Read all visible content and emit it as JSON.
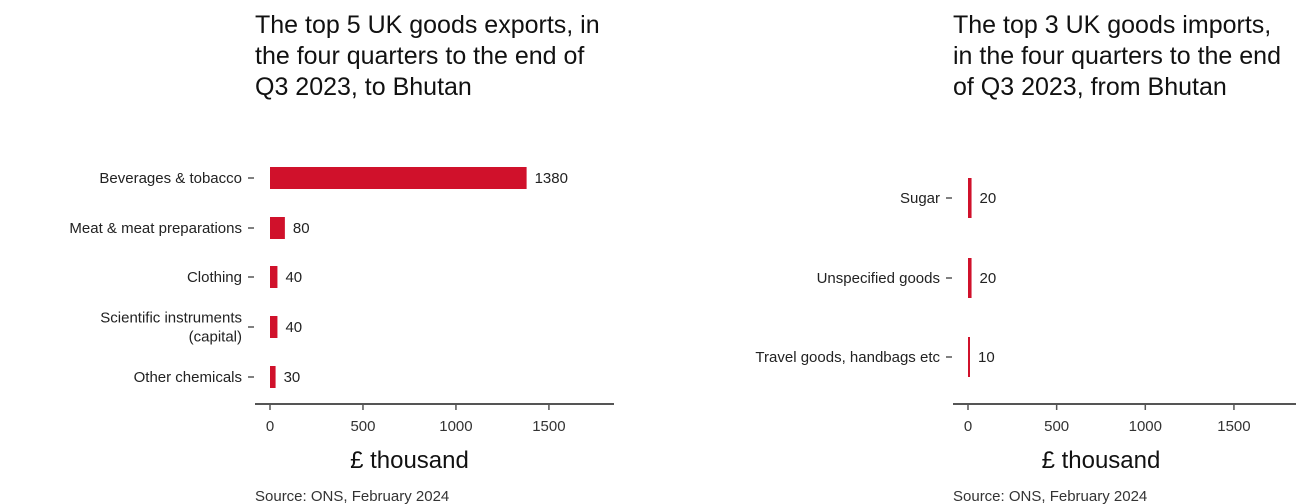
{
  "chart_data": [
    {
      "type": "bar",
      "orientation": "horizontal",
      "title": "The top 5 UK goods exports, in the four quarters to the end of Q3 2023, to Bhutan",
      "categories": [
        "Beverages & tobacco",
        "Meat & meat preparations",
        "Clothing",
        "Scientific instruments (capital)",
        "Other chemicals"
      ],
      "category_lines": [
        [
          "Beverages & tobacco"
        ],
        [
          "Meat & meat preparations"
        ],
        [
          "Clothing"
        ],
        [
          "Scientific instruments",
          "(capital)"
        ],
        [
          "Other chemicals"
        ]
      ],
      "values": [
        1380,
        80,
        40,
        40,
        30
      ],
      "xlabel": "£ thousand",
      "xlim": [
        0,
        1850
      ],
      "xticks": [
        0,
        500,
        1000,
        1500
      ],
      "grid": false,
      "bar_color": "#d0112b",
      "source": "Source: ONS, February 2024"
    },
    {
      "type": "bar",
      "orientation": "horizontal",
      "title": "The top 3 UK goods imports, in the four quarters to the end of Q3 2023, from Bhutan",
      "categories": [
        "Sugar",
        "Unspecified goods",
        "Travel goods, handbags etc"
      ],
      "category_lines": [
        [
          "Sugar"
        ],
        [
          "Unspecified goods"
        ],
        [
          "Travel goods, handbags etc"
        ]
      ],
      "values": [
        20,
        20,
        10
      ],
      "xlabel": "£ thousand",
      "xlim": [
        0,
        1850
      ],
      "xticks": [
        0,
        500,
        1000,
        1500
      ],
      "grid": false,
      "bar_color": "#d0112b",
      "source": "Source: ONS, February 2024"
    }
  ]
}
